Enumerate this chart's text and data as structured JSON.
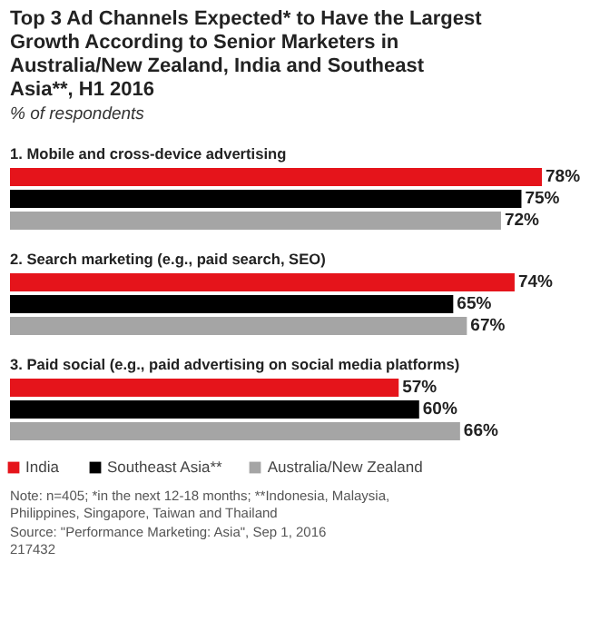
{
  "chart_data": {
    "type": "bar",
    "orientation": "horizontal",
    "title": "Top 3 Ad Channels Expected* to Have the Largest Growth According to Senior Marketers in Australia/New Zealand, India and Southeast Asia**, H1 2016",
    "subtitle": "% of respondents",
    "categories": [
      "1. Mobile and cross-device advertising",
      "2. Search marketing (e.g., paid search, SEO)",
      "3. Paid social (e.g., paid advertising on social media platforms)"
    ],
    "series": [
      {
        "name": "India",
        "color": "#e5141b",
        "values": [
          78,
          74,
          57
        ],
        "value_labels": [
          "78%",
          "74%",
          "57%"
        ]
      },
      {
        "name": "Southeast Asia**",
        "color": "#000000",
        "values": [
          75,
          65,
          60
        ],
        "value_labels": [
          "75%",
          "65%",
          "60%"
        ]
      },
      {
        "name": "Australia/New Zealand",
        "color": "#a5a5a5",
        "values": [
          72,
          67,
          66
        ],
        "value_labels": [
          "72%",
          "67%",
          "66%"
        ]
      }
    ],
    "legend": "bottom",
    "annotations": [
      "Note: n=405; *in the next 12-18 months; **Indonesia, Malaysia, Philippines, Singapore, Taiwan and Thailand",
      "Source: \"Performance Marketing: Asia\", Sep 1, 2016",
      "217432"
    ]
  }
}
